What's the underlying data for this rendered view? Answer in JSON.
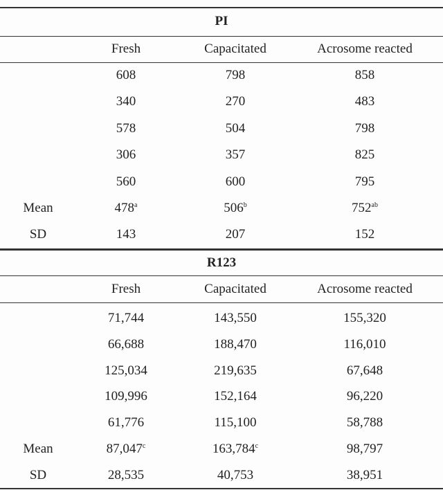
{
  "table": {
    "columns": [
      "Fresh",
      "Capacitated",
      "Acrosome reacted"
    ],
    "sections": [
      {
        "title": "PI",
        "rows": [
          {
            "cells": [
              "608",
              "798",
              "858"
            ]
          },
          {
            "cells": [
              "340",
              "270",
              "483"
            ]
          },
          {
            "cells": [
              "578",
              "504",
              "798"
            ]
          },
          {
            "cells": [
              "306",
              "357",
              "825"
            ]
          },
          {
            "cells": [
              "560",
              "600",
              "795"
            ]
          },
          {
            "label": "Mean",
            "cells": [
              {
                "text": "478",
                "sup": "a"
              },
              {
                "text": "506",
                "sup": "b"
              },
              {
                "text": "752",
                "sup": "ab"
              }
            ]
          },
          {
            "label": "SD",
            "cells": [
              "143",
              "207",
              "152"
            ]
          }
        ]
      },
      {
        "title": "R123",
        "rows": [
          {
            "cells": [
              "71,744",
              "143,550",
              "155,320"
            ]
          },
          {
            "cells": [
              "66,688",
              "188,470",
              "116,010"
            ]
          },
          {
            "cells": [
              "125,034",
              "219,635",
              "67,648"
            ]
          },
          {
            "cells": [
              "109,996",
              "152,164",
              "96,220"
            ]
          },
          {
            "cells": [
              "61,776",
              "115,100",
              "58,788"
            ]
          },
          {
            "label": "Mean",
            "cells": [
              {
                "text": "87,047",
                "sup": "c"
              },
              {
                "text": "163,784",
                "sup": "c"
              },
              "98,797"
            ]
          },
          {
            "label": "SD",
            "cells": [
              "28,535",
              "40,753",
              "38,951"
            ]
          }
        ]
      }
    ]
  }
}
